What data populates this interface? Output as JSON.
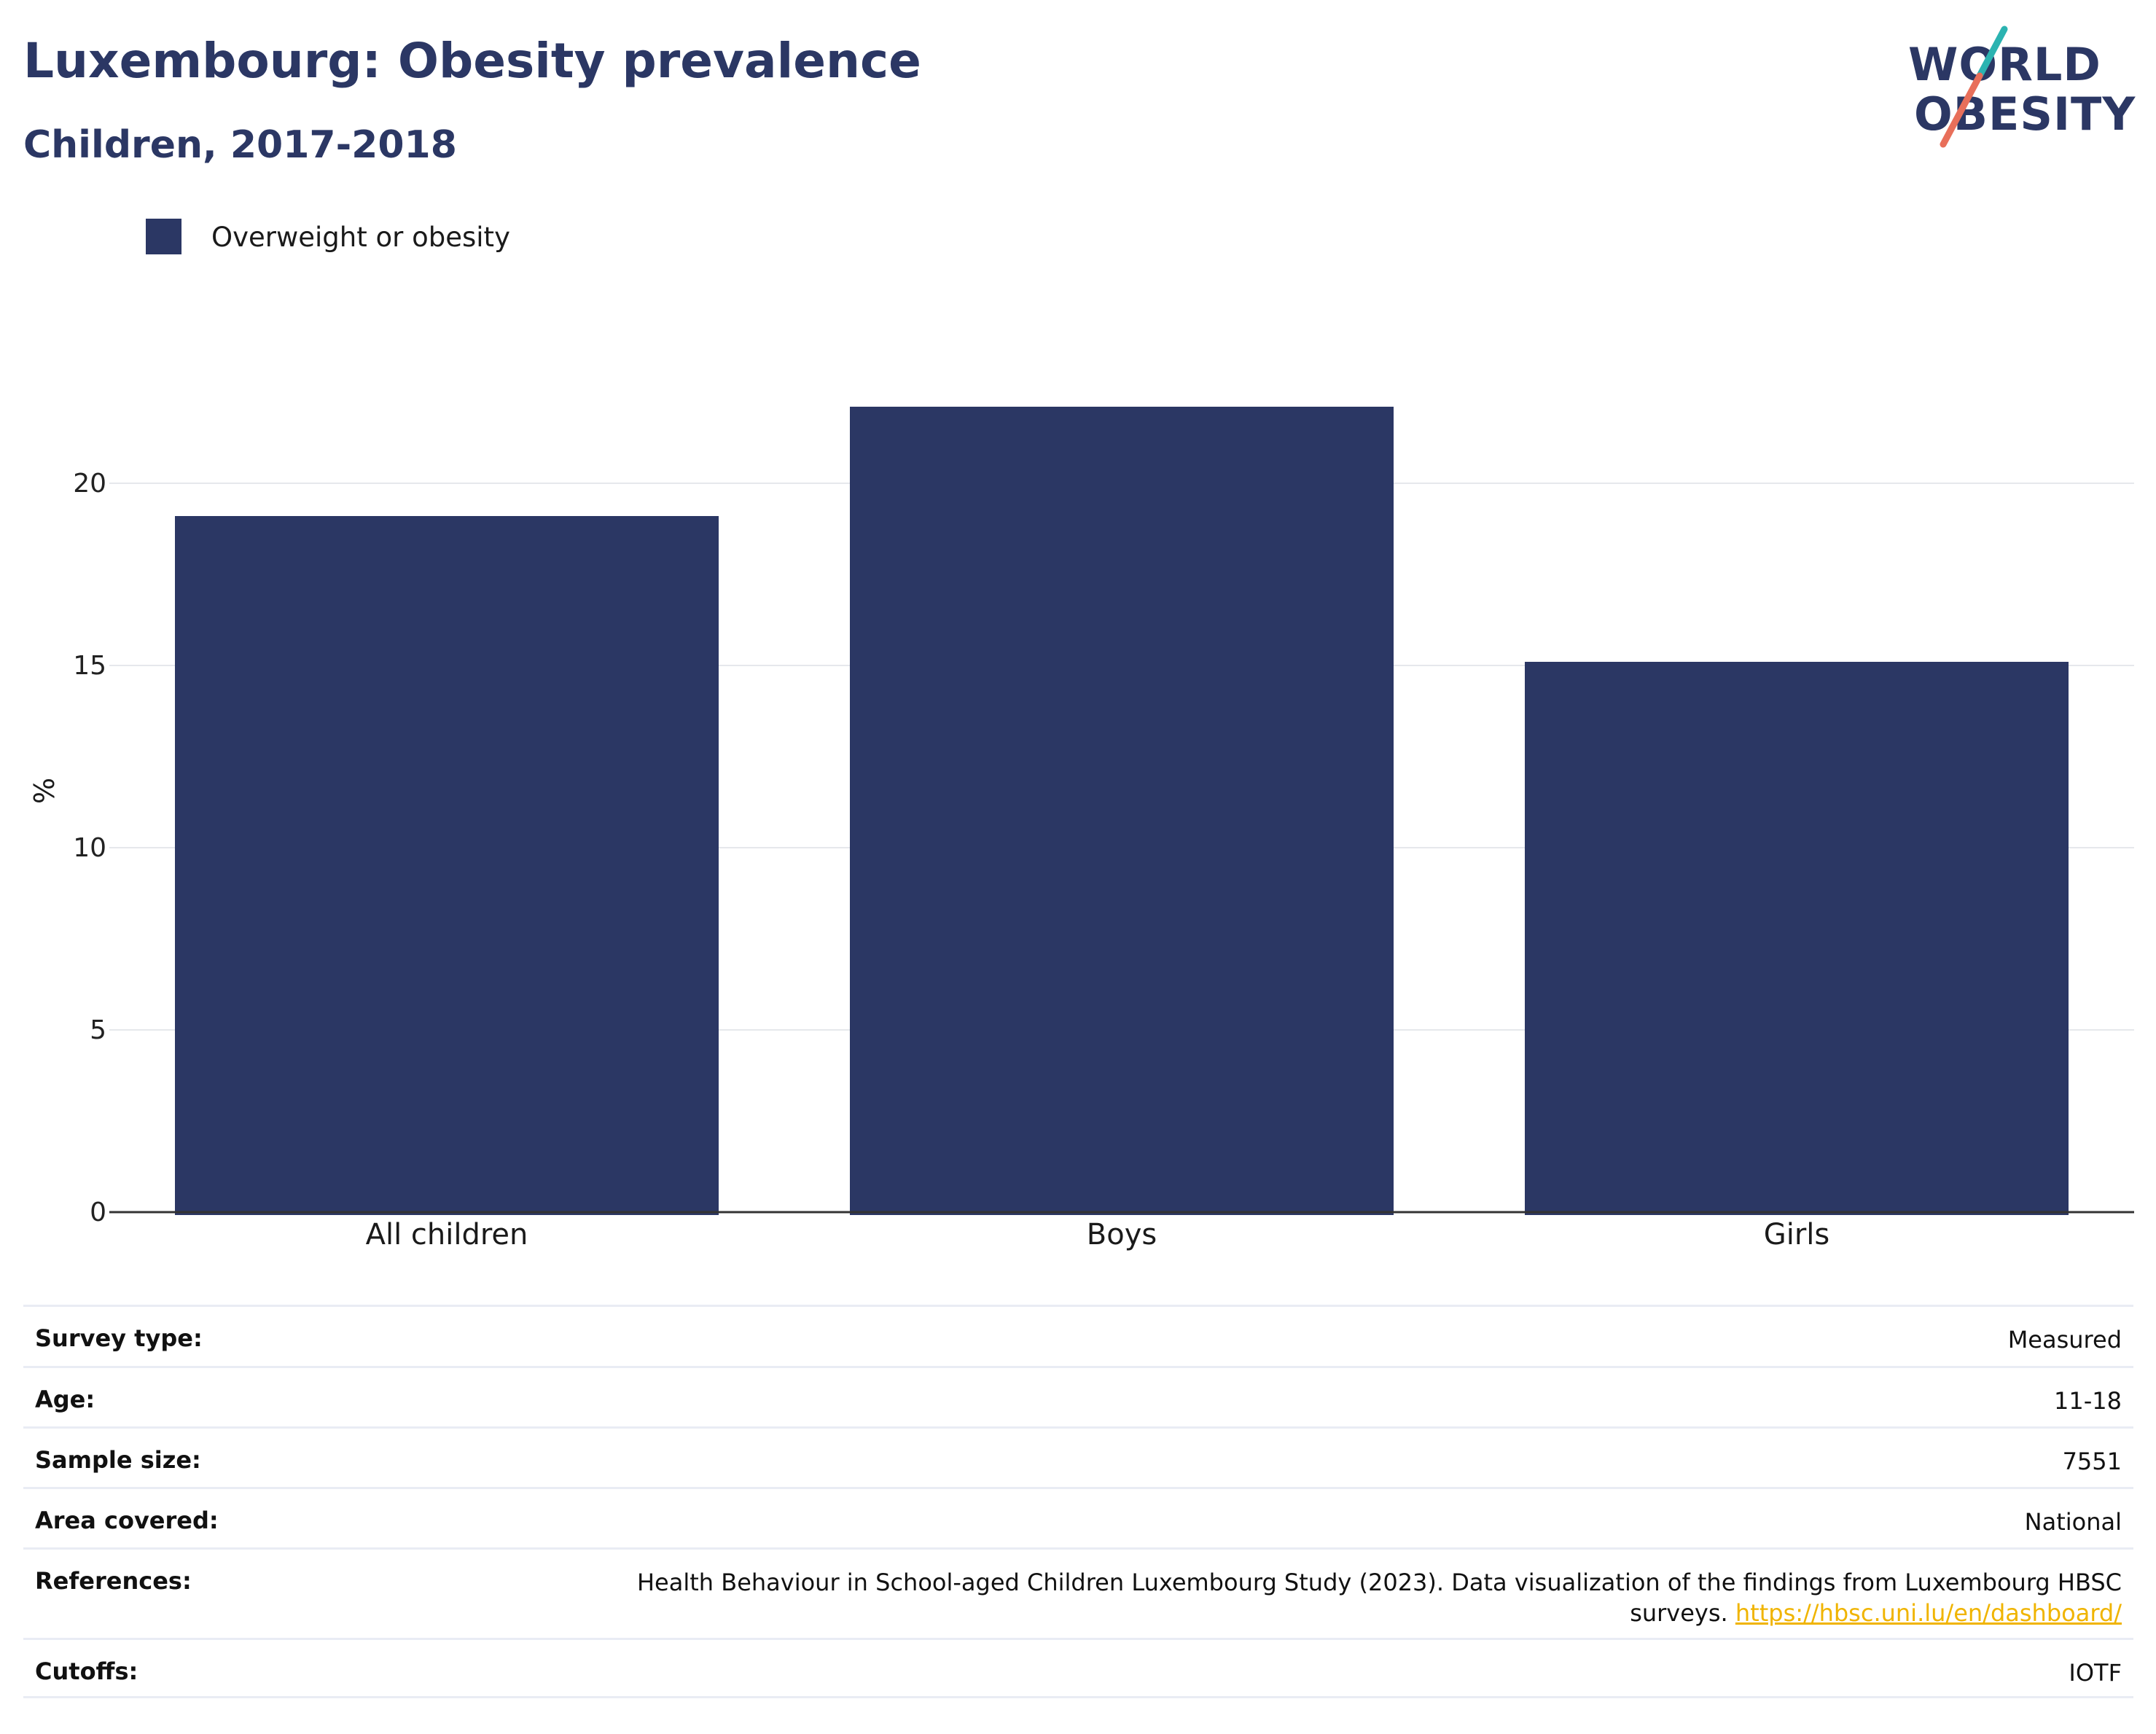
{
  "header": {
    "title": "Luxembourg: Obesity prevalence",
    "subtitle": "Children, 2017-2018"
  },
  "logo": {
    "line1": "WORLD",
    "line2": "OBESITY",
    "colors": {
      "navy": "#2b3764",
      "teal": "#2bb3b1",
      "coral": "#e86f5a"
    }
  },
  "legend": {
    "items": [
      {
        "label": "Overweight or obesity",
        "color": "#2b3764"
      }
    ]
  },
  "chart_data": {
    "type": "bar",
    "categories": [
      "All children",
      "Boys",
      "Girls"
    ],
    "series": [
      {
        "name": "Overweight or obesity",
        "values": [
          19.1,
          22.1,
          15.1
        ],
        "color": "#2b3764"
      }
    ],
    "xlabel": "",
    "ylabel": "%",
    "ylim": [
      0,
      24
    ],
    "yticks": [
      0,
      5,
      10,
      15,
      20
    ],
    "grid": true,
    "legend_position": "top-left"
  },
  "meta": {
    "rows": [
      {
        "label": "Survey type:",
        "value": "Measured"
      },
      {
        "label": "Age:",
        "value": "11-18"
      },
      {
        "label": "Sample size:",
        "value": "7551"
      },
      {
        "label": "Area covered:",
        "value": "National"
      },
      {
        "label": "References:",
        "value": "Health Behaviour in School-aged Children Luxembourg Study (2023). Data visualization of the findings from Luxembourg HBSC",
        "value_line2": "surveys.",
        "link": "https://hbsc.uni.lu/en/dashboard/"
      },
      {
        "label": "Cutoffs:",
        "value": "IOTF"
      }
    ]
  }
}
